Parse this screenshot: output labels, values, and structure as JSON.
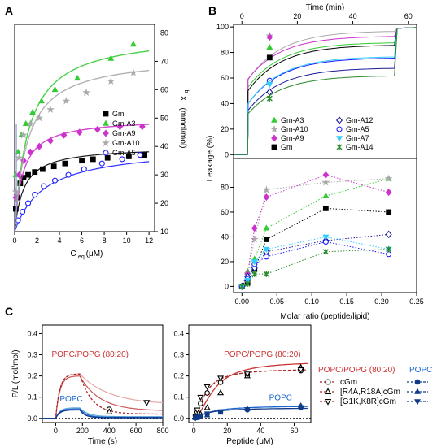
{
  "panel_labels": {
    "a": "A",
    "b": "B",
    "c": "C"
  },
  "chart_data": [
    {
      "id": "A",
      "type": "scatter",
      "xlabel": "C",
      "xlabel_sub": "eq",
      "xlabel_unit": "(μM)",
      "ylabel": "X",
      "ylabel_sub": "b",
      "ylabel_unit": "(mmol/mol)",
      "xlim": [
        0,
        12.5
      ],
      "ylim": [
        10,
        83
      ],
      "xticks": [
        0,
        2,
        4,
        6,
        8,
        10,
        12
      ],
      "yticks": [
        10,
        20,
        30,
        40,
        50,
        60,
        70,
        80
      ],
      "y_axis_side": "right",
      "legend": "center-right",
      "series": [
        {
          "name": "Gm",
          "color": "#000000",
          "marker": "square",
          "x": [
            0.1,
            0.25,
            0.5,
            0.8,
            1.2,
            1.8,
            2.5,
            3.5,
            4.5,
            6,
            7,
            8.3,
            10.2,
            11.6
          ],
          "y": [
            18,
            22,
            27,
            29,
            30,
            31,
            32,
            33,
            34,
            35,
            35.5,
            36,
            36.5,
            37
          ],
          "fit_params": [
            40,
            0.8
          ]
        },
        {
          "name": "Gm-A3",
          "color": "#33cc33",
          "marker": "triangle",
          "x": [
            0.1,
            0.3,
            0.6,
            1,
            1.6,
            2.4,
            3.6,
            5.6,
            8.6,
            10.6
          ],
          "y": [
            30,
            38,
            44,
            48,
            52,
            56,
            60,
            64,
            71,
            76
          ],
          "fit_params": [
            80,
            1.2
          ]
        },
        {
          "name": "Gm-A9",
          "color": "#cc33cc",
          "marker": "diamond",
          "x": [
            0.1,
            0.4,
            0.8,
            1.4,
            2.2,
            3.2,
            4.4,
            5.8,
            7.4,
            9.4,
            11.4
          ],
          "y": [
            22,
            30,
            35,
            38,
            40,
            42,
            44,
            45,
            46,
            47,
            47
          ],
          "fit_params": [
            50,
            0.7
          ]
        },
        {
          "name": "Gm-A10",
          "color": "#aaaaaa",
          "marker": "star",
          "x": [
            0.1,
            0.4,
            0.8,
            1.4,
            2.2,
            3.2,
            4.6,
            6.4,
            8.6,
            10.6
          ],
          "y": [
            24,
            36,
            44,
            48,
            50,
            53,
            56,
            59,
            63,
            66
          ],
          "fit_params": [
            72,
            1.1
          ]
        },
        {
          "name": "Gm-A5",
          "color": "#1a1aff",
          "marker": "circle-open",
          "x": [
            0.3,
            0.7,
            1.2,
            1.8,
            2.6,
            3.6,
            4.8,
            6.2,
            7.8,
            9.6,
            11.2
          ],
          "y": [
            14,
            17,
            20,
            23,
            26,
            28,
            30,
            32,
            34,
            35.5,
            37
          ],
          "fit_params": [
            40,
            2.6
          ]
        }
      ]
    },
    {
      "id": "B-top",
      "type": "line",
      "xlabel": "Time (min)",
      "ylabel": "Leakage (%)",
      "xlim": [
        -3,
        63
      ],
      "ylim": [
        -3,
        102
      ],
      "xticks": [
        0,
        20,
        40,
        60
      ],
      "yticks": [
        0,
        20,
        40,
        60,
        80,
        100
      ],
      "legend": "bottom",
      "series": [
        {
          "name": "Gm-A3",
          "color": "#33cc33",
          "marker": "triangle",
          "final": 88,
          "initial": 75,
          "point": 84
        },
        {
          "name": "Gm-A10",
          "color": "#aaaaaa",
          "marker": "star",
          "final": 97,
          "initial": 84,
          "point": 93
        },
        {
          "name": "Gm-A9",
          "color": "#cc33cc",
          "marker": "diamond",
          "final": 93,
          "initial": 91,
          "point": 92
        },
        {
          "name": "Gm",
          "color": "#000000",
          "marker": "square",
          "final": 86,
          "initial": 68,
          "point": 76
        },
        {
          "name": "Gm-A12",
          "color": "#1a1a99",
          "marker": "diamond-open",
          "final": 68,
          "initial": 37,
          "point": 49
        },
        {
          "name": "Gm-A5",
          "color": "#1a1aff",
          "marker": "circle-open",
          "final": 76,
          "initial": 45,
          "point": 58
        },
        {
          "name": "Gm-A7",
          "color": "#33ccff",
          "marker": "triangle-down",
          "final": 77,
          "initial": 44,
          "point": 55
        },
        {
          "name": "Gm-A14",
          "color": "#2a8a2a",
          "marker": "x",
          "final": 62,
          "initial": 35,
          "point": 44
        }
      ]
    },
    {
      "id": "B-bottom",
      "type": "line",
      "xlabel": "Molar ratio (peptide/lipid)",
      "ylabel": "Leakage (%)",
      "xlim": [
        -0.012,
        0.25
      ],
      "ylim": [
        -5,
        100
      ],
      "xticks": [
        0.0,
        0.05,
        0.1,
        0.15,
        0.2,
        0.25
      ],
      "yticks": [
        0,
        20,
        40,
        60,
        80
      ],
      "x": [
        0,
        0.0125,
        0.0125,
        0.025,
        0.035,
        0.12,
        0.21
      ],
      "series": [
        {
          "name": "Gm-A3",
          "color": "#33cc33",
          "marker": "triangle",
          "x": [
            0,
            0.008,
            0.018,
            0.035,
            0.12,
            0.21
          ],
          "y": [
            0,
            12,
            22,
            47,
            73,
            87
          ]
        },
        {
          "name": "Gm-A10",
          "color": "#aaaaaa",
          "marker": "star",
          "x": [
            0,
            0.008,
            0.018,
            0.035,
            0.12,
            0.21
          ],
          "y": [
            0,
            10,
            38,
            78,
            84,
            87
          ]
        },
        {
          "name": "Gm-A9",
          "color": "#cc33cc",
          "marker": "diamond",
          "x": [
            0,
            0.008,
            0.018,
            0.035,
            0.12,
            0.21
          ],
          "y": [
            0,
            10,
            47,
            72,
            90,
            76
          ]
        },
        {
          "name": "Gm",
          "color": "#000000",
          "marker": "square",
          "x": [
            0,
            0.008,
            0.018,
            0.035,
            0.12,
            0.21
          ],
          "y": [
            0,
            3,
            14,
            38,
            63,
            60
          ]
        },
        {
          "name": "Gm-A12",
          "color": "#1a1a99",
          "marker": "diamond-open",
          "x": [
            0,
            0.008,
            0.018,
            0.035,
            0.12,
            0.21
          ],
          "y": [
            0,
            8,
            15,
            28,
            37,
            42
          ]
        },
        {
          "name": "Gm-A5",
          "color": "#1a1aff",
          "marker": "circle-open",
          "x": [
            0,
            0.008,
            0.018,
            0.035,
            0.12,
            0.21
          ],
          "y": [
            0,
            6,
            18,
            24,
            36,
            26
          ]
        },
        {
          "name": "Gm-A7",
          "color": "#33ccff",
          "marker": "triangle-down",
          "x": [
            0,
            0.008,
            0.018,
            0.035,
            0.12,
            0.21
          ],
          "y": [
            0,
            5,
            20,
            30,
            40,
            30
          ]
        },
        {
          "name": "Gm-A14",
          "color": "#2a8a2a",
          "marker": "x",
          "x": [
            0,
            0.008,
            0.018,
            0.035,
            0.12,
            0.21
          ],
          "y": [
            0,
            2,
            10,
            10,
            28,
            30
          ]
        }
      ]
    },
    {
      "id": "C-left",
      "type": "line",
      "xlabel": "Time (s)",
      "ylabel": "P/L (mol/mol)",
      "xlim": [
        -100,
        800
      ],
      "ylim": [
        -0.02,
        0.44
      ],
      "xticks": [
        0,
        200,
        400,
        600,
        800
      ],
      "yticks": [
        0.0,
        0.1,
        0.2,
        0.3,
        0.4
      ],
      "annotations": [
        {
          "text": "POPC/POPG (80:20)",
          "color": "#cc3333"
        },
        {
          "text": "POPC",
          "color": "#1a66cc"
        }
      ],
      "points": [
        {
          "x": 400,
          "y": 0.042,
          "marker": "circle-open"
        },
        {
          "x": 400,
          "y": 0.03,
          "marker": "triangle-open"
        },
        {
          "x": 680,
          "y": 0.075,
          "marker": "triangle-down-open"
        }
      ]
    },
    {
      "id": "C-right",
      "type": "scatter",
      "xlabel": "Peptide (μM)",
      "ylabel": "",
      "xlim": [
        -3,
        70
      ],
      "ylim": [
        -0.02,
        0.44
      ],
      "xticks": [
        0,
        20,
        40,
        60
      ],
      "yticks": [
        0.0,
        0.1,
        0.2,
        0.3,
        0.4
      ],
      "annotations": [
        {
          "text": "POPC/POPG (80:20)",
          "color": "#cc3333"
        },
        {
          "text": "POPC",
          "color": "#1a66cc"
        }
      ],
      "series": [
        {
          "name": "cGm",
          "group": "POPC/POPG (80:20)",
          "marker": "circle-open",
          "x": [
            1,
            2,
            4,
            8,
            16,
            32,
            64
          ],
          "y": [
            0.01,
            0.03,
            0.07,
            0.12,
            0.17,
            0.205,
            0.225
          ]
        },
        {
          "name": "[R4A,R18A]cGm",
          "group": "POPC/POPG (80:20)",
          "marker": "triangle-open",
          "x": [
            1,
            2,
            4,
            8,
            16,
            32,
            64
          ],
          "y": [
            0.005,
            0.01,
            0.02,
            0.05,
            0.12,
            0.2,
            0.24
          ]
        },
        {
          "name": "[G1K,K8R]cGm",
          "group": "POPC/POPG (80:20)",
          "marker": "triangle-down-open",
          "x": [
            1,
            2,
            4,
            8,
            16,
            32,
            64
          ],
          "y": [
            0.01,
            0.04,
            0.1,
            0.15,
            0.19,
            0.21,
            0.23
          ]
        },
        {
          "name": "cGm",
          "group": "POPC",
          "marker": "circle",
          "x": [
            1,
            2,
            4,
            8,
            16,
            32,
            64
          ],
          "y": [
            0.002,
            0.005,
            0.01,
            0.02,
            0.03,
            0.04,
            0.05
          ]
        },
        {
          "name": "[R4A,R18A]cGm",
          "group": "POPC",
          "marker": "triangle",
          "x": [
            1,
            2,
            4,
            8,
            16,
            32,
            64
          ],
          "y": [
            0.002,
            0.004,
            0.008,
            0.015,
            0.028,
            0.045,
            0.06
          ]
        },
        {
          "name": "[G1K,K8R]cGm",
          "group": "POPC",
          "marker": "triangle-down",
          "x": [
            1,
            2,
            4,
            8,
            16,
            32,
            64
          ],
          "y": [
            0.002,
            0.006,
            0.012,
            0.022,
            0.032,
            0.042,
            0.052
          ]
        }
      ],
      "legend": {
        "group1": {
          "text": "POPC/POPG (80:20)",
          "color": "#cc3333"
        },
        "group2": {
          "text": "POPC",
          "color": "#1a66cc"
        },
        "entries": [
          "cGm",
          "[R4A,R18A]cGm",
          "[G1K,K8R]cGm"
        ]
      }
    }
  ]
}
